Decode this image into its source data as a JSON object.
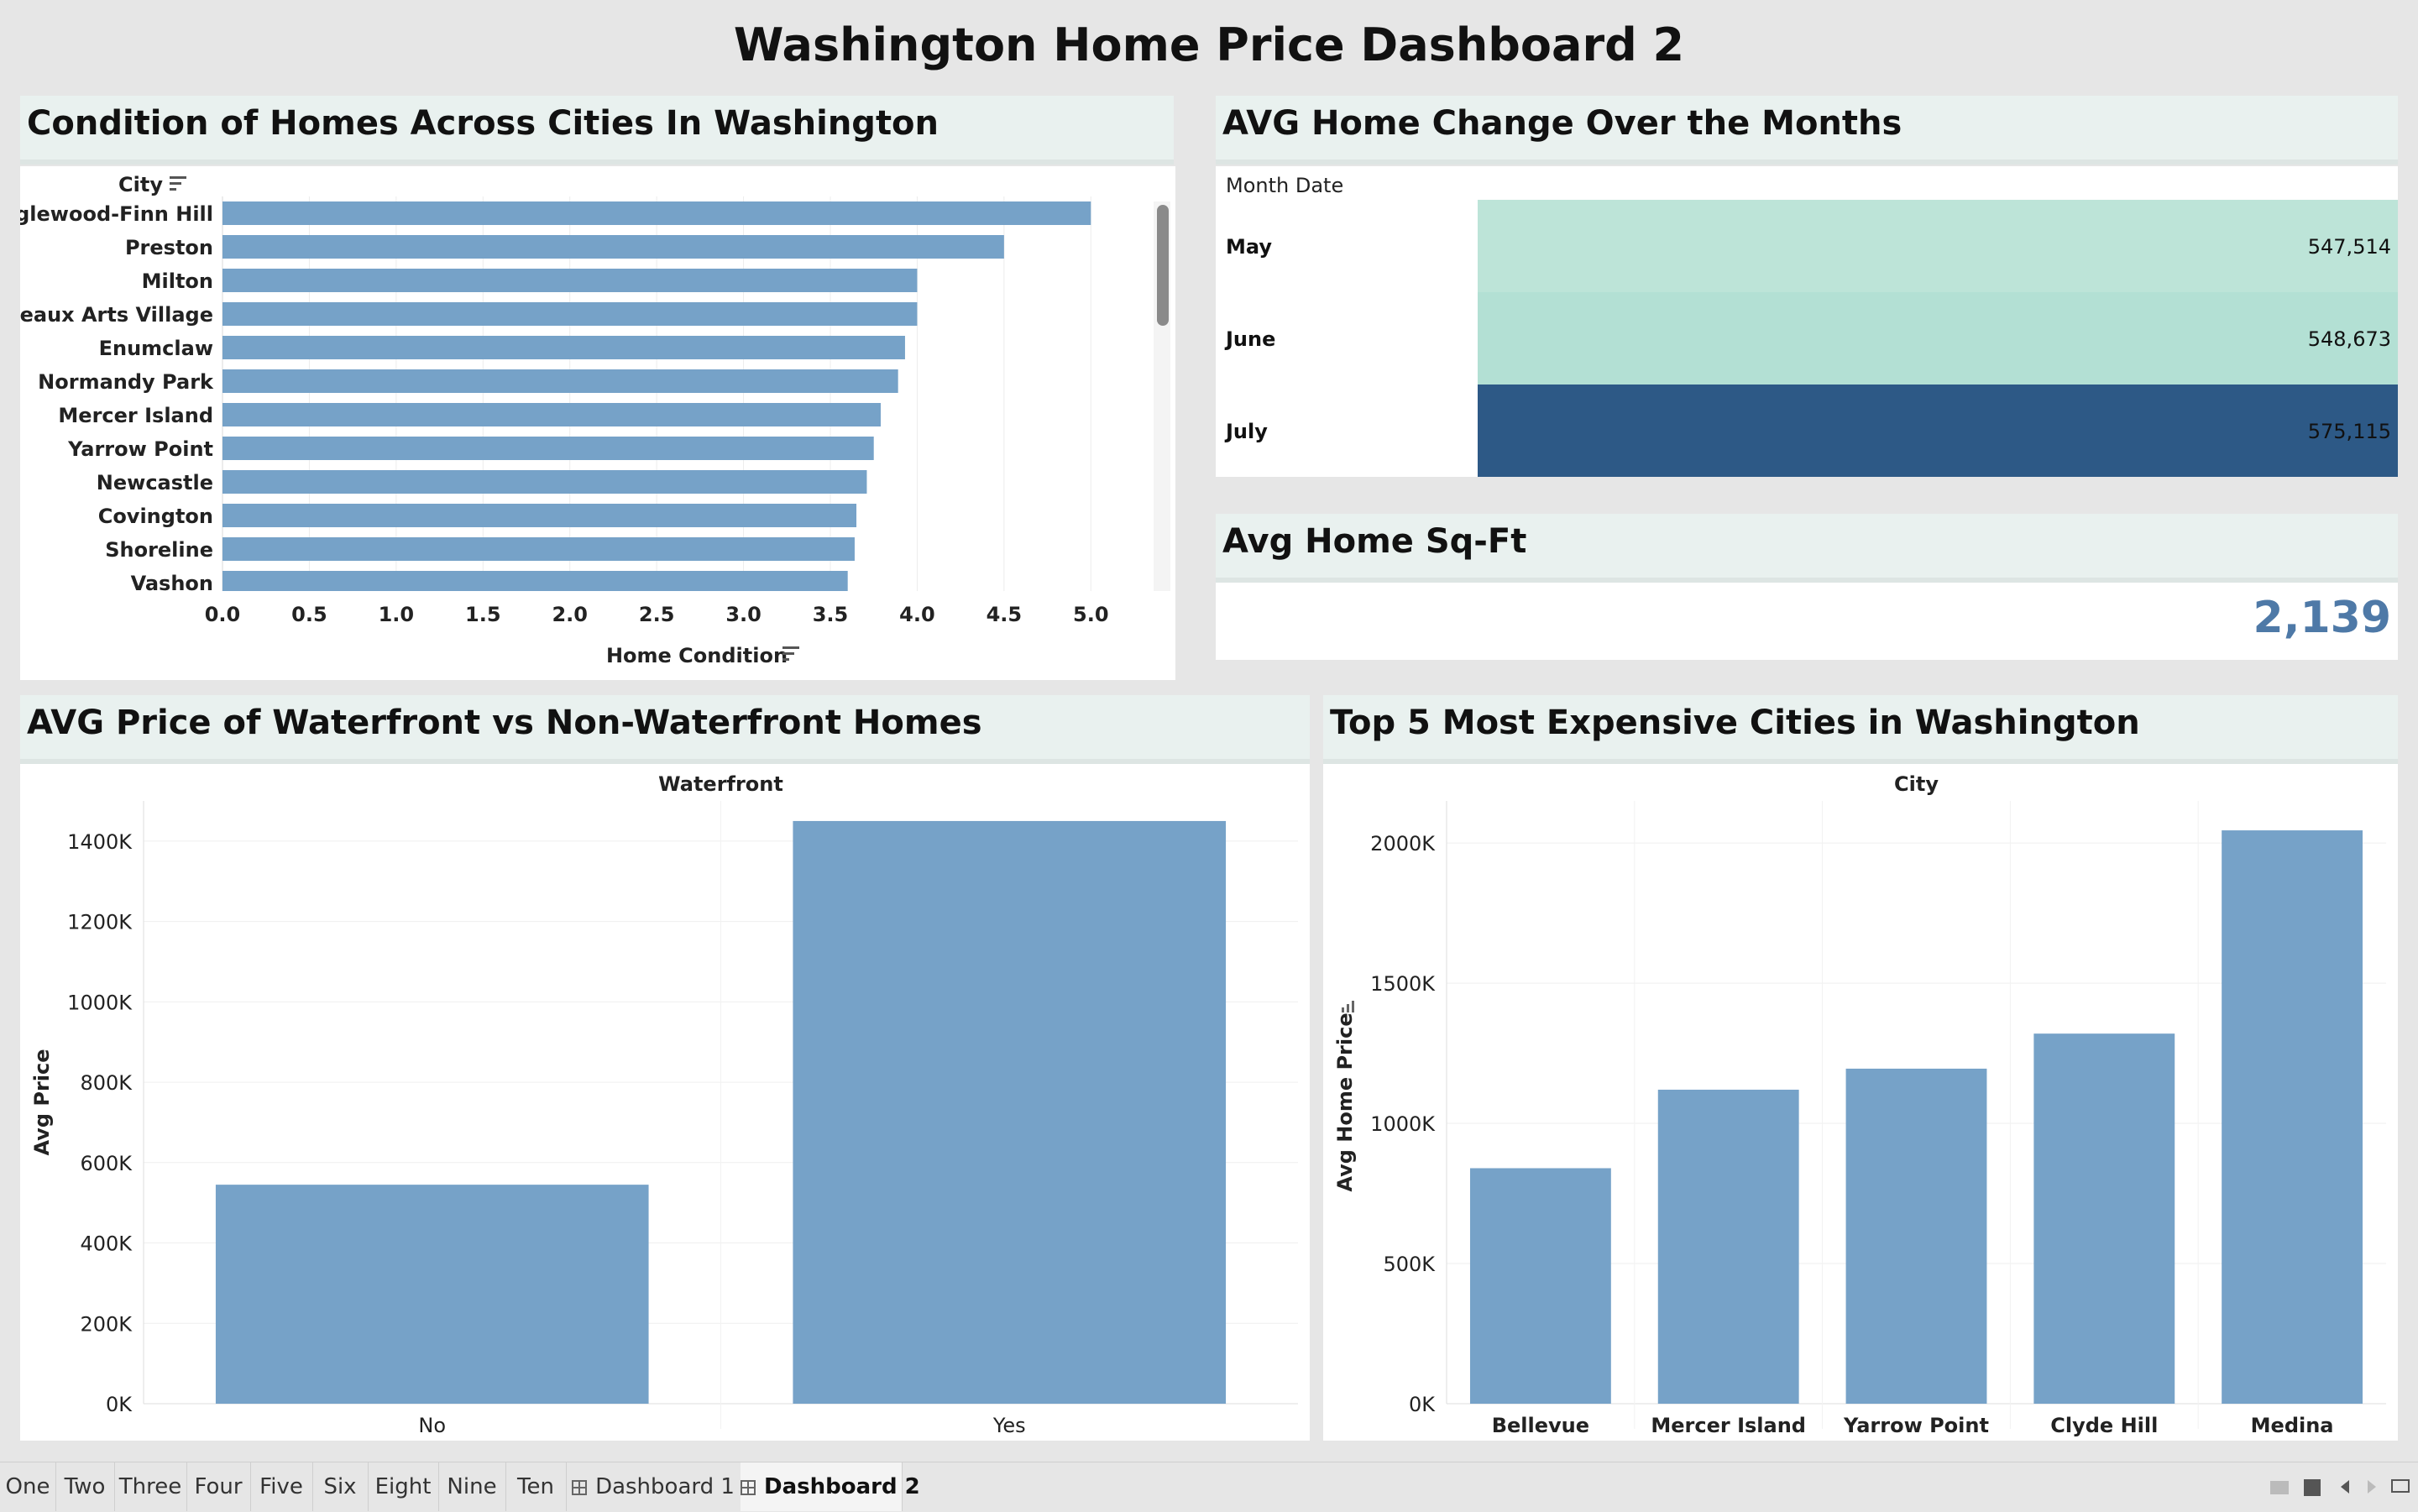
{
  "dashboard": {
    "title": "Washington Home Price Dashboard 2"
  },
  "panels": {
    "condition": {
      "title": "Condition of Homes Across Cities In Washington"
    },
    "monthly": {
      "title": "AVG Home Change Over the Months"
    },
    "sqft": {
      "title": "Avg Home Sq-Ft",
      "value": "2,139"
    },
    "waterfront": {
      "title": "AVG Price of Waterfront vs Non-Waterfront Homes"
    },
    "top5": {
      "title": "Top 5 Most Expensive Cities in Washington"
    }
  },
  "chart_data": [
    {
      "type": "bar",
      "orientation": "horizontal",
      "row_header": "City",
      "xlabel": "Home Condition",
      "xlim": [
        0,
        5.25
      ],
      "xticks": [
        "0.0",
        "0.5",
        "1.0",
        "1.5",
        "2.0",
        "2.5",
        "3.0",
        "3.5",
        "4.0",
        "4.5",
        "5.0"
      ],
      "categories": [
        "Inglewood-Finn Hill",
        "Preston",
        "Milton",
        "Beaux Arts Village",
        "Enumclaw",
        "Normandy Park",
        "Mercer Island",
        "Yarrow Point",
        "Newcastle",
        "Covington",
        "Shoreline",
        "Vashon"
      ],
      "values": [
        5.0,
        4.5,
        4.0,
        4.0,
        3.93,
        3.89,
        3.79,
        3.75,
        3.71,
        3.65,
        3.64,
        3.6
      ],
      "color": "#76a2c8"
    },
    {
      "type": "table",
      "column_header": "Month Date",
      "rows": [
        {
          "label": "May",
          "value": "547,514",
          "color": "#bde4d8"
        },
        {
          "label": "June",
          "value": "548,673",
          "color": "#b3e0d4"
        },
        {
          "label": "July",
          "value": "575,115",
          "color": "#2d5986"
        }
      ]
    },
    {
      "type": "bar",
      "header": "Waterfront",
      "ylabel": "Avg Price",
      "ylim": [
        0,
        1500000
      ],
      "yticks": [
        "0K",
        "200K",
        "400K",
        "600K",
        "800K",
        "1000K",
        "1200K",
        "1400K"
      ],
      "categories": [
        "No",
        "Yes"
      ],
      "values": [
        545000,
        1450000
      ],
      "color": "#76a2c8"
    },
    {
      "type": "bar",
      "header": "City",
      "ylabel": "Avg Home Price",
      "ylim": [
        0,
        2150000
      ],
      "yticks": [
        "0K",
        "500K",
        "1000K",
        "1500K",
        "2000K"
      ],
      "categories": [
        "Bellevue",
        "Mercer Island",
        "Yarrow Point",
        "Clyde Hill",
        "Medina"
      ],
      "values": [
        840000,
        1120000,
        1195000,
        1320000,
        2045000
      ],
      "color": "#76a2c8"
    }
  ],
  "tabs": [
    "One",
    "Two",
    "Three",
    "Four",
    "Five",
    "Six",
    "Eight",
    "Nine",
    "Ten",
    "Dashboard 1",
    "Dashboard 2"
  ],
  "active_tab": "Dashboard 2"
}
